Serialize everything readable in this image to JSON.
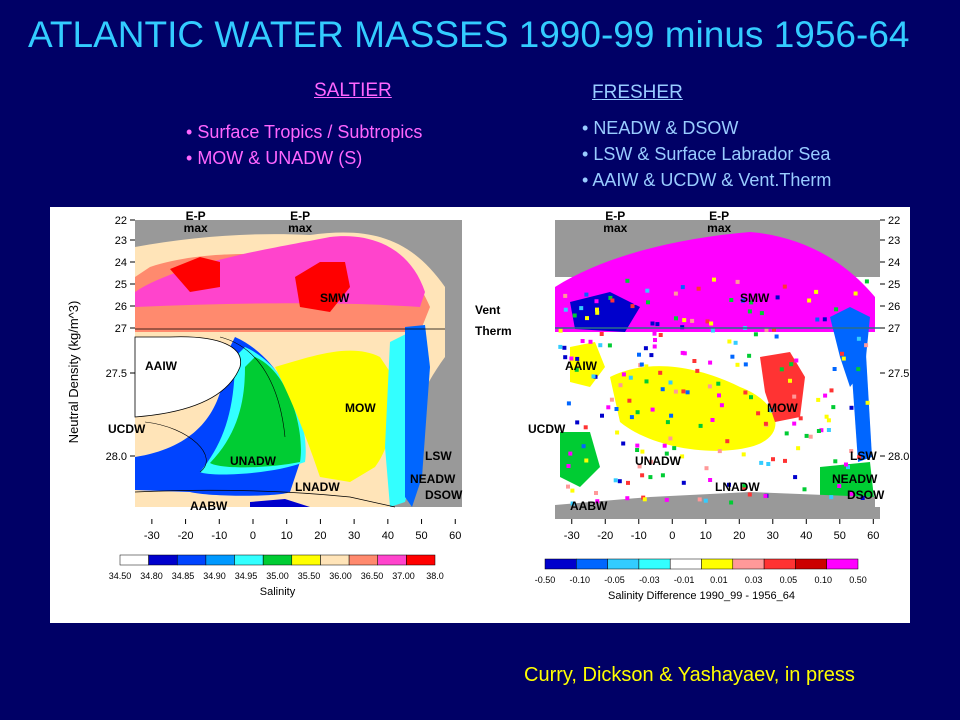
{
  "title": "ATLANTIC WATER MASSES 1990-99  minus 1956-64",
  "saltier": {
    "header": "SALTIER",
    "items": [
      "Surface Tropics / Subtropics",
      "MOW & UNADW (S)"
    ]
  },
  "fresher": {
    "header": "FRESHER",
    "items": [
      "NEADW & DSOW",
      "LSW & Surface Labrador Sea",
      "AAIW  & UCDW & Vent.Therm"
    ]
  },
  "credit": "Curry, Dickson & Yashayaev, in press",
  "colors": {
    "background": "#000066",
    "title": "#33ccff",
    "saltier": "#ff66ff",
    "fresher": "#99ccff",
    "credit": "#ffff00"
  },
  "chart_data": [
    {
      "type": "heatmap",
      "title": "",
      "xlabel": "",
      "ylabel": "Neutral Density (kg/m^3)",
      "xlim": [
        -35,
        62
      ],
      "x_ticks": [
        -30,
        -20,
        -10,
        0,
        10,
        20,
        30,
        40,
        50,
        60
      ],
      "y_ticks": [
        "22",
        "23",
        "24",
        "25",
        "26",
        "27",
        "27.5",
        "28.0"
      ],
      "top_labels": [
        "E-P",
        "max",
        "E-P",
        "max"
      ],
      "annotations": [
        "SMW",
        "AAIW",
        "MOW",
        "UCDW",
        "UNADW",
        "LSW",
        "NEADW",
        "DSOW",
        "LNADW",
        "AABW",
        "Vent",
        "Therm"
      ],
      "colorbar": {
        "label": "Salinity",
        "ticks": [
          "34.50",
          "34.80",
          "34.85",
          "34.90",
          "34.95",
          "35.00",
          "35.50",
          "36.00",
          "36.50",
          "37.00",
          "38.0"
        ],
        "colors": [
          "#ffffff",
          "#0000cc",
          "#0044ff",
          "#0099ff",
          "#33ffff",
          "#00cc33",
          "#ffff00",
          "#ffe4b8",
          "#ff8a6e",
          "#ff44cc",
          "#ff0000"
        ]
      }
    },
    {
      "type": "heatmap",
      "title": "",
      "xlabel": "",
      "ylabel": "",
      "xlim": [
        -35,
        62
      ],
      "x_ticks": [
        -30,
        -20,
        -10,
        0,
        10,
        20,
        30,
        40,
        50,
        60
      ],
      "y_ticks": [
        "22",
        "23",
        "24",
        "25",
        "26",
        "27",
        "27.5",
        "28.0"
      ],
      "top_labels": [
        "E-P",
        "max",
        "E-P",
        "max"
      ],
      "annotations": [
        "SMW",
        "AAIW",
        "MOW",
        "UCDW",
        "UNADW",
        "LSW",
        "NEADW",
        "DSOW",
        "LNADW",
        "AABW"
      ],
      "colorbar": {
        "label": "Salinity Difference 1990_99 - 1956_64",
        "ticks": [
          "-0.50",
          "-0.10",
          "-0.05",
          "-0.03",
          "-0.01",
          "0.01",
          "0.03",
          "0.05",
          "0.10",
          "0.50"
        ],
        "colors": [
          "#0000cc",
          "#0066ff",
          "#33ccff",
          "#33ffff",
          "#ffffff",
          "#ffff00",
          "#ff9999",
          "#ff3333",
          "#cc0000",
          "#ff00ff"
        ]
      }
    }
  ]
}
